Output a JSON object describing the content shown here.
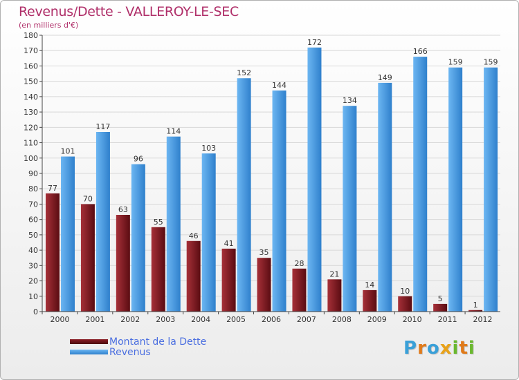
{
  "header": {
    "title": "Revenus/Dette - VALLEROY-LE-SEC",
    "subtitle": "(en milliers d'€)"
  },
  "legend": {
    "debt_label": "Montant de la Dette",
    "revenue_label": "Revenus"
  },
  "logo": {
    "text": "Proxiti"
  },
  "colors": {
    "debt": "#6e1218",
    "debt_light": "#a63038",
    "revenue": "#3d8fd8",
    "revenue_light": "#69b4f0",
    "title": "#b0306a",
    "legend_text": "#4a6ee0"
  },
  "chart_data": {
    "type": "bar",
    "title": "Revenus/Dette - VALLEROY-LE-SEC",
    "subtitle": "(en milliers d'€)",
    "categories": [
      "2000",
      "2001",
      "2002",
      "2003",
      "2004",
      "2005",
      "2006",
      "2007",
      "2008",
      "2009",
      "2010",
      "2011",
      "2012"
    ],
    "series": [
      {
        "name": "Montant de la Dette",
        "values": [
          77,
          70,
          63,
          55,
          46,
          41,
          35,
          28,
          21,
          14,
          10,
          5,
          1
        ]
      },
      {
        "name": "Revenus",
        "values": [
          101,
          117,
          96,
          114,
          103,
          152,
          144,
          172,
          134,
          149,
          166,
          159,
          159
        ]
      }
    ],
    "ylim": [
      0,
      180
    ],
    "ytick_step": 10,
    "grid": true,
    "legend_position": "bottom-left"
  }
}
